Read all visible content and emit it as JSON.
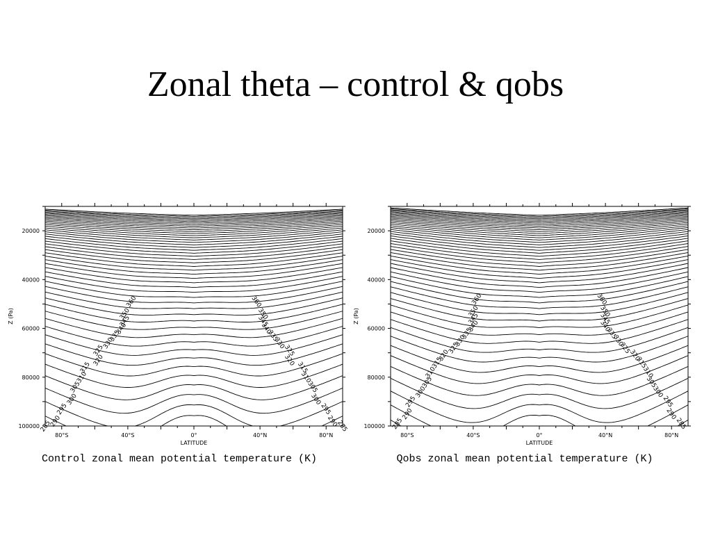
{
  "slide": {
    "title": "Zonal theta – control & qobs"
  },
  "chart_data": [
    {
      "type": "contour",
      "title": "Control zonal mean potential temperature (K)",
      "xlabel": "LATITUDE",
      "ylabel": "Z (Pa)",
      "x_ticks": [
        "80°S",
        "40°S",
        "0°",
        "40°N",
        "80°N"
      ],
      "y_ticks": [
        "20000",
        "40000",
        "60000",
        "80000",
        "100000"
      ],
      "xlim": [
        -90,
        90
      ],
      "ylim": [
        10000,
        100000
      ],
      "contour_interval": 5,
      "contour_labels": [
        "360",
        "350",
        "345",
        "340",
        "335",
        "330",
        "325",
        "320",
        "315",
        "310",
        "305",
        "300",
        "295",
        "290",
        "285",
        "280"
      ]
    },
    {
      "type": "contour",
      "title": "Qobs zonal mean potential temperature (K)",
      "xlabel": "LATITUDE",
      "ylabel": "Z (Pa)",
      "x_ticks": [
        "80°S",
        "40°S",
        "0°",
        "40°N",
        "80°N"
      ],
      "y_ticks": [
        "20000",
        "40000",
        "60000",
        "80000",
        "100000"
      ],
      "xlim": [
        -90,
        90
      ],
      "ylim": [
        10000,
        100000
      ],
      "contour_interval": 5,
      "contour_labels": [
        "360",
        "350",
        "345",
        "340",
        "335",
        "330",
        "325",
        "320",
        "315",
        "310",
        "305",
        "300",
        "295",
        "290",
        "285",
        "280",
        "275"
      ]
    }
  ]
}
